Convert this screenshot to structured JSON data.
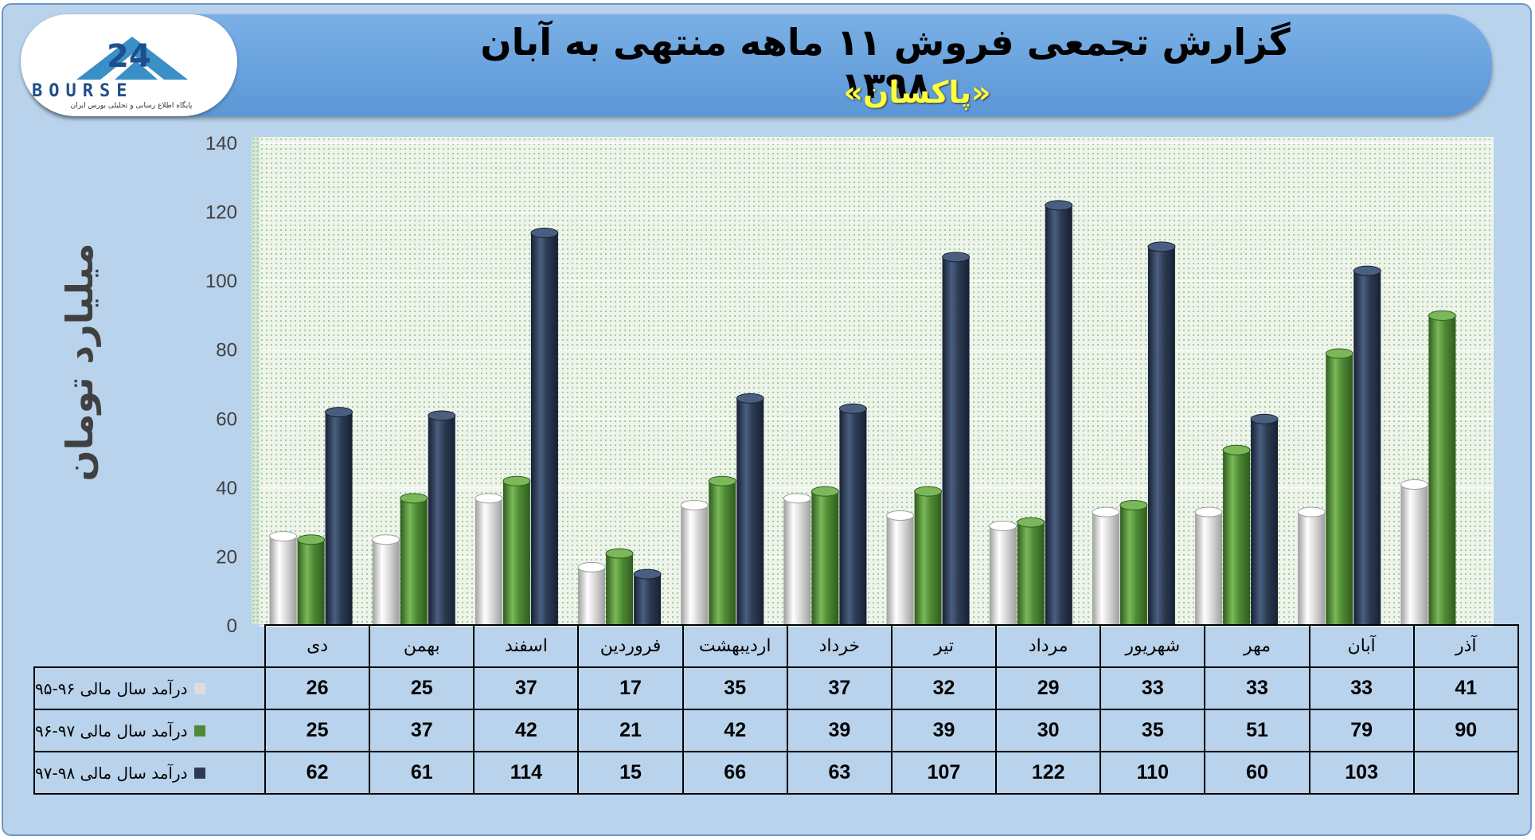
{
  "header": {
    "title": "گزارش تجمعی فروش ۱۱ ماهه منتهی به آبان ۱۳۹۸",
    "subtitle": "«پاکسان»"
  },
  "logo": {
    "text": "BOURSE",
    "tagline": "پایگاه اطلاع رسانی و تحلیلی بورس ایران"
  },
  "colors": {
    "series_95_96": "#dcdcdc",
    "series_96_97": "#4e8a34",
    "series_97_98": "#2c3b52"
  },
  "chart_data": {
    "type": "bar",
    "title": "گزارش تجمعی فروش ۱۱ ماهه منتهی به آبان ۱۳۹۸",
    "subtitle": "«پاکسان»",
    "ylabel": "میلیارد تومان",
    "xlabel": "",
    "ylim": [
      0,
      140
    ],
    "yticks": [
      0,
      20,
      40,
      60,
      80,
      100,
      120,
      140
    ],
    "grid": true,
    "categories": [
      "دی",
      "بهمن",
      "اسفند",
      "فروردین",
      "اردیبهشت",
      "خرداد",
      "تیر",
      "مرداد",
      "شهریور",
      "مهر",
      "آبان",
      "آذر"
    ],
    "series": [
      {
        "name": "درآمد سال مالی ۹۶-۹۵",
        "values": [
          26,
          25,
          37,
          17,
          35,
          37,
          32,
          29,
          33,
          33,
          33,
          41
        ]
      },
      {
        "name": "درآمد سال مالی ۹۷-۹۶",
        "values": [
          25,
          37,
          42,
          21,
          42,
          39,
          39,
          30,
          35,
          51,
          79,
          90
        ]
      },
      {
        "name": "درآمد سال مالی ۹۸-۹۷",
        "values": [
          62,
          61,
          114,
          15,
          66,
          63,
          107,
          122,
          110,
          60,
          103,
          null
        ]
      }
    ]
  }
}
